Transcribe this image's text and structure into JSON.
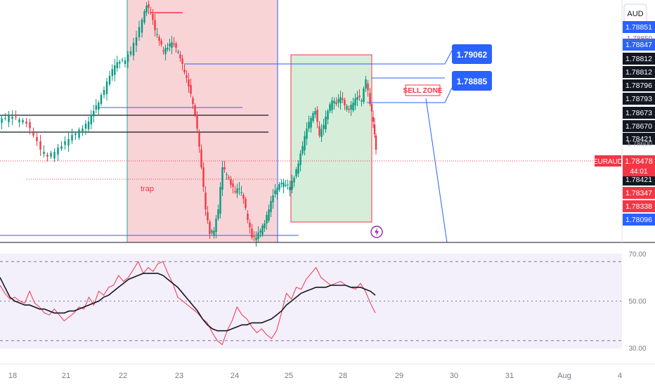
{
  "chart_data": [
    {
      "type": "candlestick",
      "symbol": "EURAUD",
      "currency": "AUD",
      "x_tick_labels": [
        "18",
        "21",
        "22",
        "23",
        "24",
        "25",
        "28",
        "29",
        "30",
        "31",
        "Aug",
        "4"
      ],
      "price_axis_labels": [
        "1.78850",
        "1.78600"
      ],
      "current_price": {
        "value": "1.78478",
        "countdown": "44:01",
        "color": "#f23645"
      },
      "price_badges": [
        {
          "text": "1.78851",
          "bg": "#2962ff",
          "fg": "#ffffff"
        },
        {
          "text": "1.78847",
          "bg": "#2962ff",
          "fg": "#ffffff"
        },
        {
          "text": "1.78812",
          "bg": "#131722",
          "fg": "#ffffff"
        },
        {
          "text": "1.78812",
          "bg": "#131722",
          "fg": "#ffffff"
        },
        {
          "text": "1.78796",
          "bg": "#131722",
          "fg": "#ffffff"
        },
        {
          "text": "1.78793",
          "bg": "#131722",
          "fg": "#ffffff"
        },
        {
          "text": "1.78673",
          "bg": "#131722",
          "fg": "#ffffff"
        },
        {
          "text": "1.78670",
          "bg": "#131722",
          "fg": "#ffffff"
        },
        {
          "text": "1.78421",
          "bg": "#131722",
          "fg": "#ffffff"
        },
        {
          "text": "1.78421",
          "bg": "#131722",
          "fg": "#ffffff"
        },
        {
          "text": "1.78347",
          "bg": "#f23645",
          "fg": "#ffffff"
        },
        {
          "text": "1.78338",
          "bg": "#f23645",
          "fg": "#ffffff"
        },
        {
          "text": "1.78096",
          "bg": "#2962ff",
          "fg": "#ffffff"
        }
      ],
      "annotations": {
        "callout_high": "1.79062",
        "callout_low": "1.78885",
        "sell_zone": "SELL ZONE",
        "trap": "trap"
      },
      "colors": {
        "up": "#089981",
        "down": "#f23645",
        "line": "#2962ff",
        "trap_zone": "#f7c5c9",
        "buy_zone": "#cfead2"
      }
    },
    {
      "type": "line",
      "indicator": "RSI",
      "y_tick_labels": [
        "70.00",
        "50.00",
        "30.00"
      ],
      "ylim": [
        26,
        74
      ],
      "levels": [
        70,
        50,
        30
      ],
      "series": [
        {
          "values": [
            58,
            54,
            51,
            52,
            50,
            49,
            55,
            49,
            47,
            44,
            43,
            46,
            43,
            40,
            42,
            44,
            47,
            46,
            52,
            48,
            55,
            53,
            57,
            58,
            63,
            60,
            62,
            66,
            70,
            64,
            67,
            65,
            69,
            70,
            64,
            59,
            52,
            50,
            48,
            46,
            44,
            41,
            39,
            34,
            30,
            28,
            35,
            40,
            47,
            43,
            41,
            37,
            34,
            36,
            33,
            31,
            35,
            44,
            54,
            51,
            57,
            56,
            61,
            64,
            67,
            62,
            60,
            58,
            59,
            60,
            58,
            57,
            56,
            59,
            55,
            49,
            44
          ],
          "color": "#f23645"
        },
        {
          "values": [
            62,
            57,
            52,
            50,
            49,
            48,
            48,
            47,
            46,
            46,
            45,
            44,
            44,
            44,
            45,
            45,
            46,
            47,
            48,
            49,
            50,
            52,
            53,
            55,
            57,
            59,
            61,
            62,
            63,
            64,
            64,
            64,
            64,
            63,
            61,
            59,
            57,
            54,
            51,
            48,
            45,
            41,
            38,
            36,
            35,
            35,
            35,
            36,
            37,
            38,
            38,
            39,
            39,
            39,
            40,
            41,
            43,
            45,
            48,
            50,
            52,
            54,
            55,
            56,
            57,
            57,
            57,
            58,
            58,
            58,
            58,
            57,
            57,
            57,
            56,
            55,
            53
          ],
          "color": "#131722"
        }
      ]
    }
  ]
}
